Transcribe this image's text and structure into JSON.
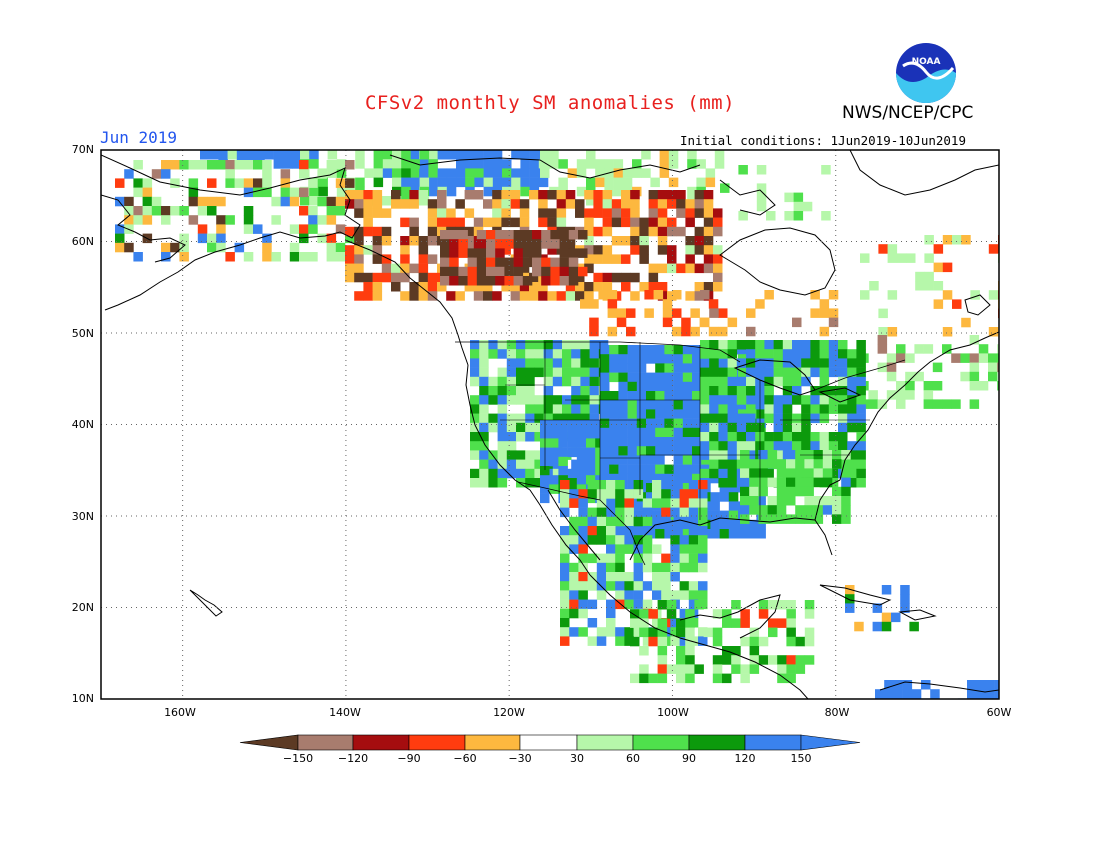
{
  "title": "CFSv2 monthly SM anomalies (mm)",
  "agency": "NWS/NCEP/CPC",
  "logo_text": "NOAA",
  "month_label": "Jun 2019",
  "initial_conditions": "Initial conditions: 1Jun2019-10Jun2019",
  "lat_labels": [
    "70N",
    "60N",
    "50N",
    "40N",
    "30N",
    "20N",
    "10N"
  ],
  "lon_labels": [
    "160W",
    "140W",
    "120W",
    "100W",
    "80W",
    "60W"
  ],
  "colorbar": {
    "labels": [
      "−150",
      "−120",
      "−90",
      "−60",
      "−30",
      "30",
      "60",
      "90",
      "120",
      "150"
    ],
    "colors": [
      "#5c3a24",
      "#a87c6e",
      "#a50d0f",
      "#ff3c0f",
      "#fdb83f",
      "#ffffff",
      "#b6f7aa",
      "#4fe04c",
      "#0c9a0c",
      "#3a82ee",
      "#3a82ee"
    ]
  },
  "colors": {
    "title": "#e8201e",
    "month": "#2255ee",
    "grid": "#666666"
  }
}
